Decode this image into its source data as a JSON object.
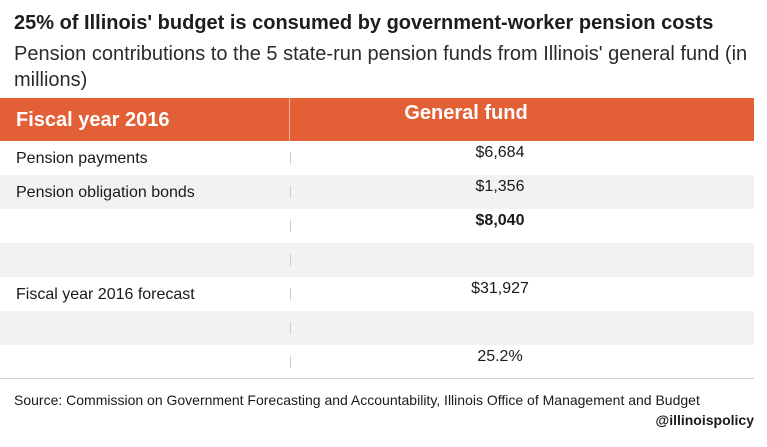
{
  "chart_data": {
    "type": "table",
    "title": "25% of Illinois' budget is consumed by government-worker pension costs",
    "subtitle": "Pension contributions to the 5 state-run pension funds from Illinois' general fund (in millions)",
    "columns": [
      "Fiscal year 2016",
      "General fund"
    ],
    "rows": [
      {
        "label": "Pension payments",
        "value": "$6,684",
        "bold": false
      },
      {
        "label": "Pension obligation bonds",
        "value": "$1,356",
        "bold": false
      },
      {
        "label": "",
        "value": "$8,040",
        "bold": true
      },
      {
        "label": "",
        "value": "",
        "bold": false
      },
      {
        "label": "Fiscal year 2016 forecast",
        "value": "$31,927",
        "bold": false
      },
      {
        "label": "",
        "value": "",
        "bold": false
      },
      {
        "label": "",
        "value": "25.2%",
        "bold": false
      }
    ],
    "source": "Source: Commission on Government Forecasting and Accountability, Illinois Office of Management and Budget",
    "handle": "@illinoispolicy"
  },
  "colors": {
    "header_background": "#e35f35",
    "header_text": "#ffffff",
    "stripe": "#f2f2f2"
  }
}
